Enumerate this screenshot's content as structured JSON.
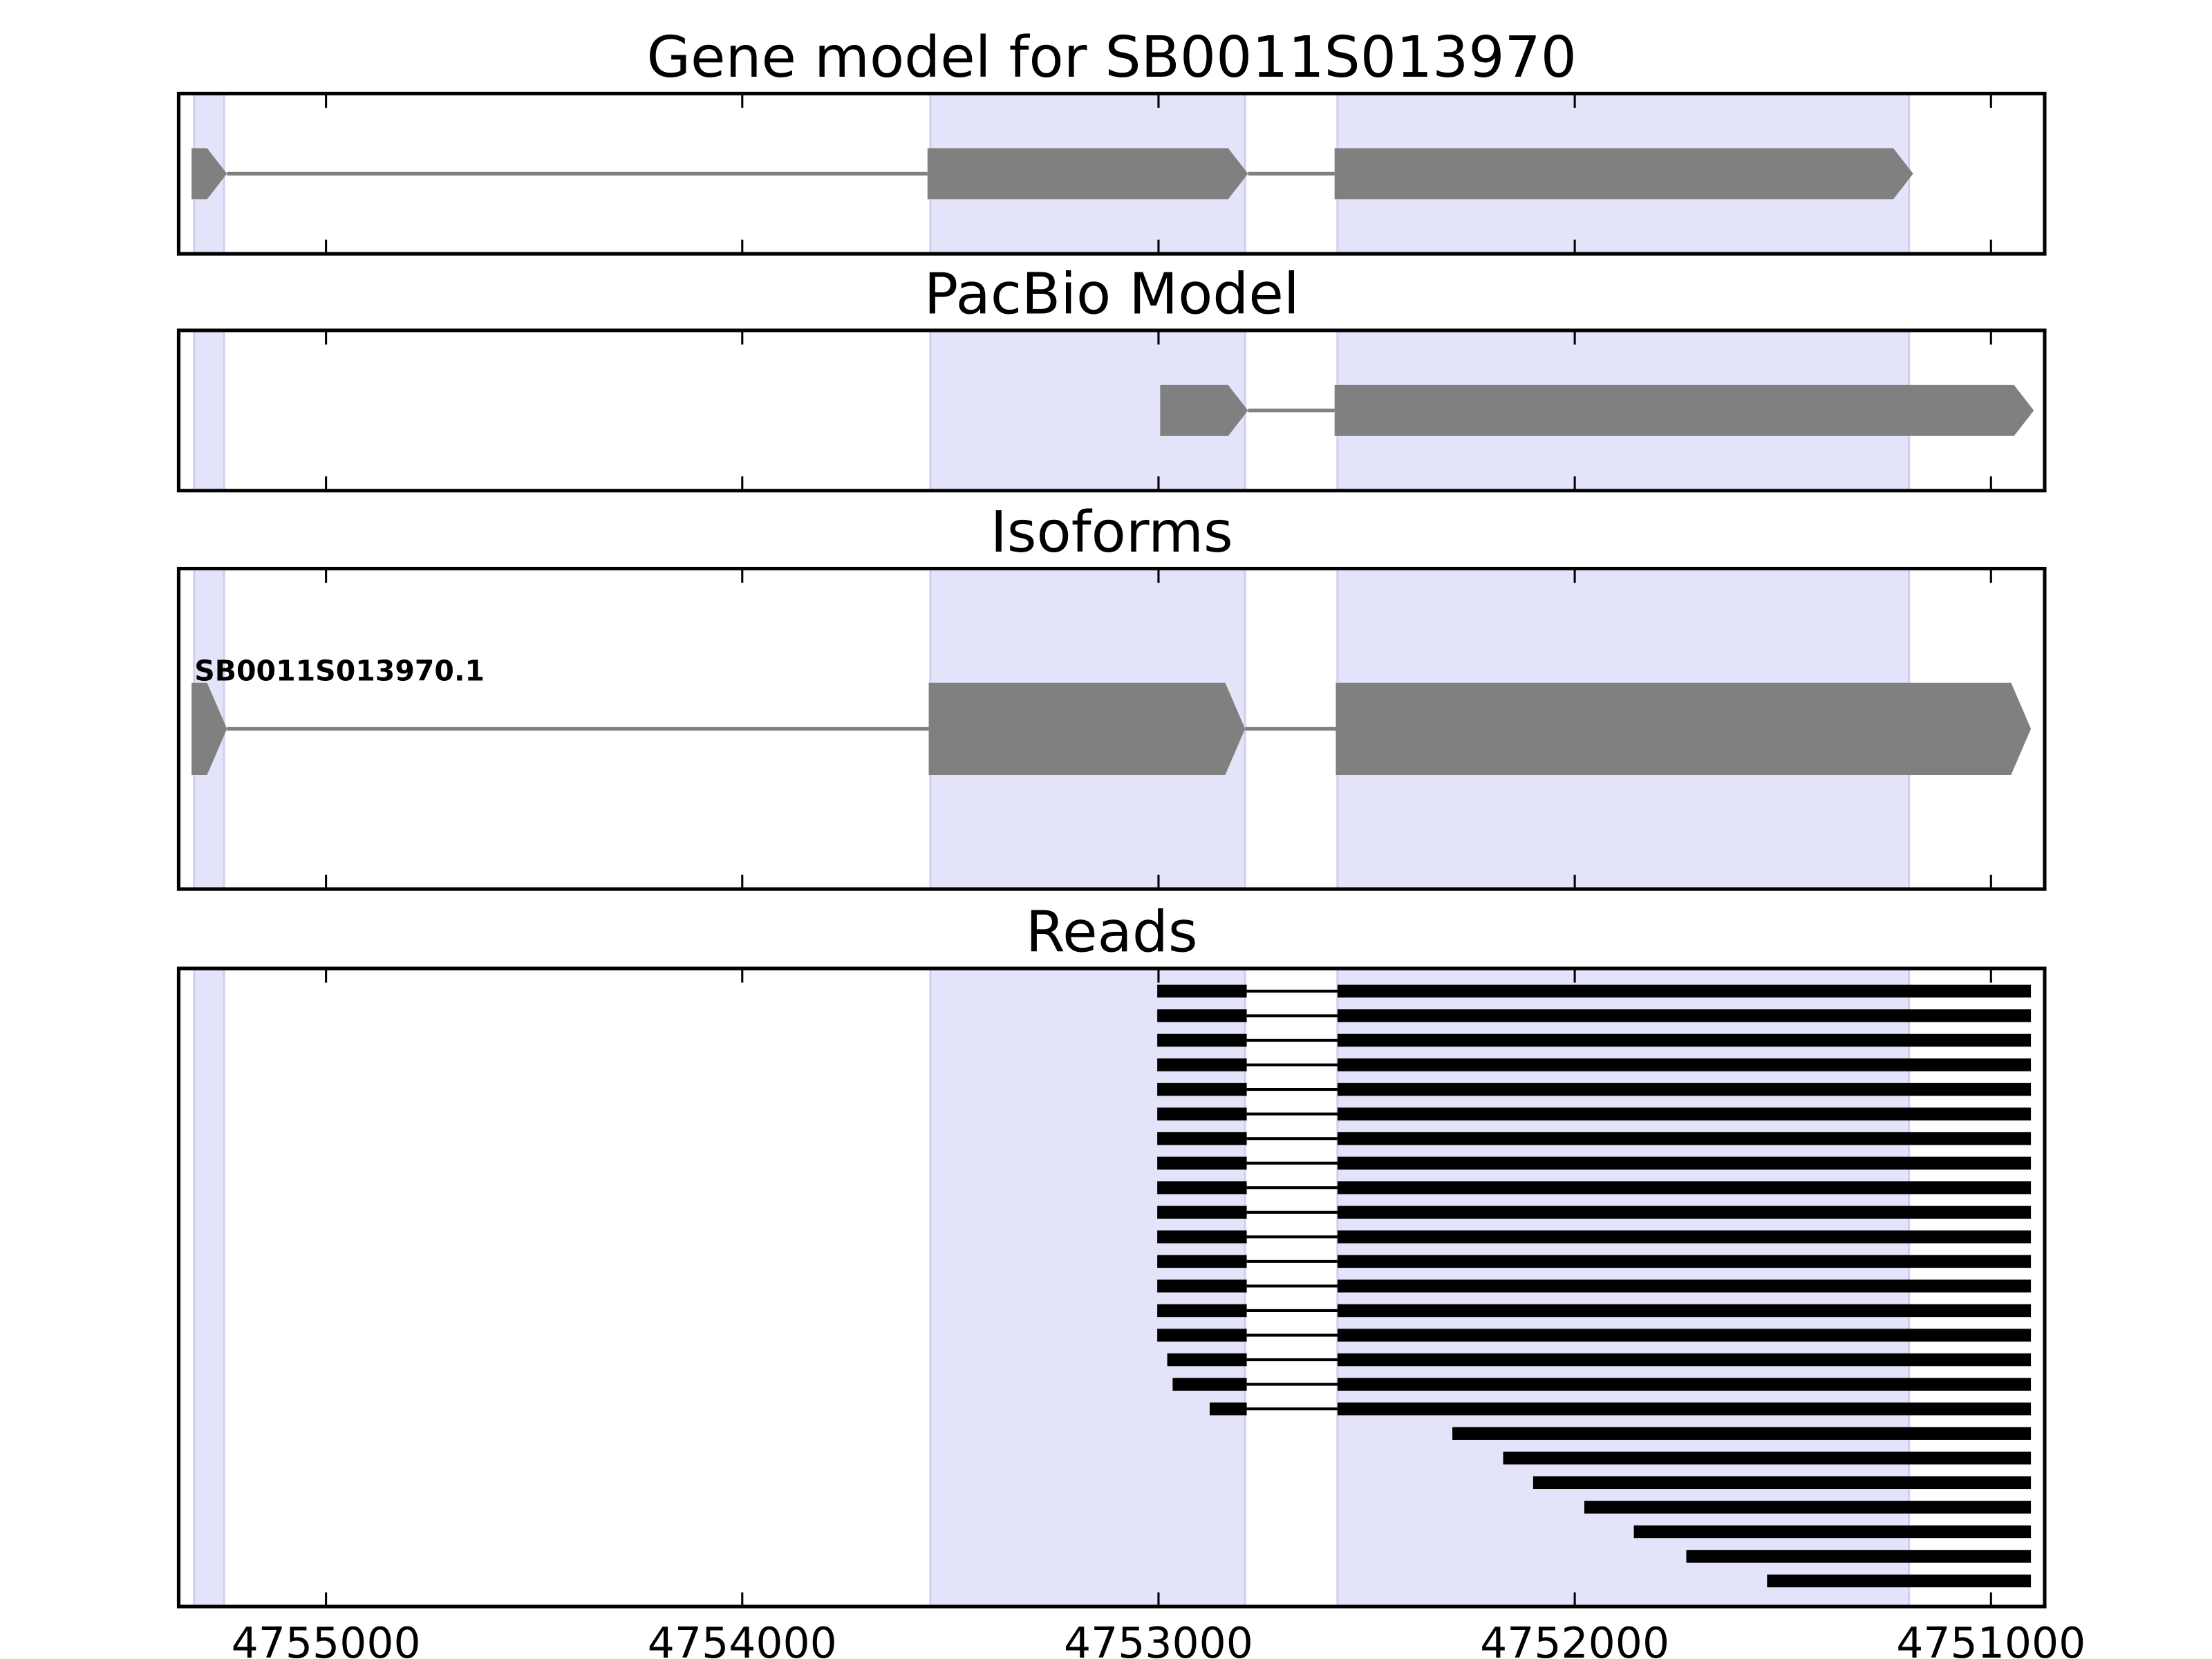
{
  "chart_data": {
    "type": "gene-tracks",
    "xlim": [
      4755354,
      4750871
    ],
    "xticks": [
      4755000,
      4754000,
      4753000,
      4752000,
      4751000
    ],
    "exon_regions": [
      [
        4755317,
        4755245
      ],
      [
        4753548,
        4752792
      ],
      [
        4752570,
        4751197
      ]
    ],
    "shade_color": "#e3e3fa",
    "exon_color": "#808080",
    "read_color": "#000000",
    "panels": [
      {
        "title": "Gene model for SB0011S013970",
        "models": [
          {
            "exons": [
              [
                4755323,
                4755238
              ],
              [
                4753555,
                4752785
              ],
              [
                4752577,
                4751187
              ]
            ]
          }
        ]
      },
      {
        "title": "PacBio Model",
        "models": [
          {
            "exons": [
              [
                4752996,
                4752785
              ],
              [
                4752577,
                4750897
              ]
            ]
          }
        ]
      },
      {
        "title": "Isoforms",
        "models": [
          {
            "label": "SB0011S013970.1",
            "exons": [
              [
                4755323,
                4755238
              ],
              [
                4753552,
                4752792
              ],
              [
                4752574,
                4750904
              ]
            ]
          }
        ]
      },
      {
        "title": "Reads",
        "reads": [
          [
            [
              4753003,
              4752788
            ],
            [
              4752570,
              4750904
            ]
          ],
          [
            [
              4753003,
              4752788
            ],
            [
              4752570,
              4750904
            ]
          ],
          [
            [
              4753003,
              4752788
            ],
            [
              4752570,
              4750904
            ]
          ],
          [
            [
              4753003,
              4752788
            ],
            [
              4752570,
              4750904
            ]
          ],
          [
            [
              4753003,
              4752788
            ],
            [
              4752570,
              4750904
            ]
          ],
          [
            [
              4753003,
              4752788
            ],
            [
              4752570,
              4750904
            ]
          ],
          [
            [
              4753003,
              4752788
            ],
            [
              4752570,
              4750904
            ]
          ],
          [
            [
              4753003,
              4752788
            ],
            [
              4752570,
              4750904
            ]
          ],
          [
            [
              4753003,
              4752788
            ],
            [
              4752570,
              4750904
            ]
          ],
          [
            [
              4753003,
              4752788
            ],
            [
              4752570,
              4750904
            ]
          ],
          [
            [
              4753003,
              4752788
            ],
            [
              4752570,
              4750904
            ]
          ],
          [
            [
              4753003,
              4752788
            ],
            [
              4752570,
              4750904
            ]
          ],
          [
            [
              4753003,
              4752788
            ],
            [
              4752570,
              4750904
            ]
          ],
          [
            [
              4753003,
              4752788
            ],
            [
              4752570,
              4750904
            ]
          ],
          [
            [
              4753003,
              4752788
            ],
            [
              4752570,
              4750904
            ]
          ],
          [
            [
              4752979,
              4752788
            ],
            [
              4752570,
              4750904
            ]
          ],
          [
            [
              4752966,
              4752788
            ],
            [
              4752570,
              4750904
            ]
          ],
          [
            [
              4752877,
              4752788
            ],
            [
              4752570,
              4750904
            ]
          ],
          [
            [
              4752294,
              4750904
            ]
          ],
          [
            [
              4752172,
              4750904
            ]
          ],
          [
            [
              4752100,
              4750904
            ]
          ],
          [
            [
              4751977,
              4750904
            ]
          ],
          [
            [
              4751858,
              4750904
            ]
          ],
          [
            [
              4751732,
              4750904
            ]
          ],
          [
            [
              4751538,
              4750904
            ]
          ]
        ]
      }
    ]
  }
}
